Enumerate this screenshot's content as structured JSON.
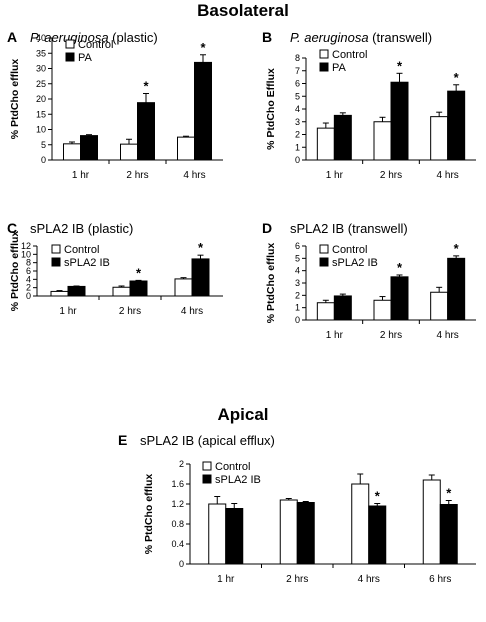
{
  "sections": {
    "top": "Basolateral",
    "bottom": "Apical"
  },
  "colors": {
    "control": "#ffffff",
    "treatment": "#000000",
    "axis": "#000000"
  },
  "chart_data": [
    {
      "id": "A",
      "panel_label": "A",
      "title_italic": "P. aeruginosa",
      "title_rest": " (plastic)",
      "type": "bar",
      "ylabel": "% PtdCho efflux",
      "ylim": [
        0,
        40
      ],
      "yticks": [
        "0",
        "5",
        "10",
        "15",
        "20",
        "25",
        "30",
        "35",
        "40"
      ],
      "categories": [
        "1 hr",
        "2 hrs",
        "4 hrs"
      ],
      "series": [
        {
          "name": "Control",
          "values": [
            5.3,
            5.2,
            7.5
          ],
          "errors": [
            0.6,
            1.6,
            0.3
          ]
        },
        {
          "name": "PA",
          "values": [
            8.0,
            18.8,
            32.0
          ],
          "errors": [
            0.3,
            3.0,
            2.5
          ]
        }
      ],
      "significant": [
        false,
        true,
        true
      ],
      "legend": "top-left"
    },
    {
      "id": "B",
      "panel_label": "B",
      "title_italic": "P. aeruginosa",
      "title_rest": " (transwell)",
      "type": "bar",
      "ylabel": "% PtdCho Efflux",
      "ylim": [
        0,
        8
      ],
      "yticks": [
        "0",
        "1",
        "2",
        "3",
        "4",
        "5",
        "6",
        "7",
        "8"
      ],
      "categories": [
        "1 hr",
        "2 hrs",
        "4 hrs"
      ],
      "series": [
        {
          "name": "Control",
          "values": [
            2.5,
            3.0,
            3.4
          ],
          "errors": [
            0.4,
            0.35,
            0.35
          ]
        },
        {
          "name": "PA",
          "values": [
            3.5,
            6.1,
            5.4
          ],
          "errors": [
            0.2,
            0.7,
            0.5
          ]
        }
      ],
      "significant": [
        false,
        true,
        true
      ],
      "legend": "top-left"
    },
    {
      "id": "C",
      "panel_label": "C",
      "title_italic": "",
      "title_rest": "sPLA2 IB (plastic)",
      "type": "bar",
      "ylabel": "% PtdCho efflux",
      "ylim": [
        0,
        12
      ],
      "yticks": [
        "0",
        "2",
        "4",
        "6",
        "8",
        "10",
        "12"
      ],
      "categories": [
        "1 hr",
        "2 hrs",
        "4 hrs"
      ],
      "series": [
        {
          "name": "Control",
          "values": [
            1.1,
            2.1,
            4.1
          ],
          "errors": [
            0.2,
            0.3,
            0.3
          ]
        },
        {
          "name": "sPLA2 IB",
          "values": [
            2.3,
            3.6,
            8.9
          ],
          "errors": [
            0.1,
            0.15,
            0.9
          ]
        }
      ],
      "significant": [
        false,
        true,
        true
      ],
      "legend": "top-left"
    },
    {
      "id": "D",
      "panel_label": "D",
      "title_italic": "",
      "title_rest": "sPLA2 IB (transwell)",
      "type": "bar",
      "ylabel": "% PtdCho efflux",
      "ylim": [
        0,
        6
      ],
      "yticks": [
        "0",
        "1",
        "2",
        "3",
        "4",
        "5",
        "6"
      ],
      "categories": [
        "1 hr",
        "2 hrs",
        "4 hrs"
      ],
      "series": [
        {
          "name": "Control",
          "values": [
            1.4,
            1.6,
            2.25
          ],
          "errors": [
            0.2,
            0.3,
            0.4
          ]
        },
        {
          "name": "sPLA2 IB",
          "values": [
            1.95,
            3.5,
            5.0
          ],
          "errors": [
            0.15,
            0.15,
            0.2
          ]
        }
      ],
      "significant": [
        false,
        true,
        true
      ],
      "legend": "top-left"
    },
    {
      "id": "E",
      "panel_label": "E",
      "title_italic": "",
      "title_rest": "sPLA2 IB (apical efflux)",
      "type": "bar",
      "ylabel": "% PtdCho efflux",
      "ylim": [
        0,
        2
      ],
      "yticks": [
        "0",
        "0.4",
        "0.8",
        "1.2",
        "1.6",
        "2"
      ],
      "categories": [
        "1 hr",
        "2 hrs",
        "4 hrs",
        "6 hrs"
      ],
      "series": [
        {
          "name": "Control",
          "values": [
            1.2,
            1.28,
            1.6,
            1.68
          ],
          "errors": [
            0.15,
            0.03,
            0.2,
            0.1
          ]
        },
        {
          "name": "sPLA2 IB",
          "values": [
            1.11,
            1.23,
            1.16,
            1.19
          ],
          "errors": [
            0.1,
            0.02,
            0.05,
            0.08
          ]
        }
      ],
      "significant": [
        false,
        false,
        true,
        true
      ],
      "legend": "top-left"
    }
  ]
}
